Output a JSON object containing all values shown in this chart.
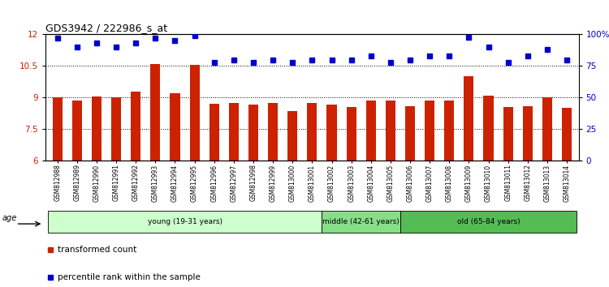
{
  "title": "GDS3942 / 222986_s_at",
  "samples": [
    "GSM812988",
    "GSM812989",
    "GSM812990",
    "GSM812991",
    "GSM812992",
    "GSM812993",
    "GSM812994",
    "GSM812995",
    "GSM812996",
    "GSM812997",
    "GSM812998",
    "GSM812999",
    "GSM813000",
    "GSM813001",
    "GSM813002",
    "GSM813003",
    "GSM813004",
    "GSM813005",
    "GSM813006",
    "GSM813007",
    "GSM813008",
    "GSM813009",
    "GSM813010",
    "GSM813011",
    "GSM813012",
    "GSM813013",
    "GSM813014"
  ],
  "bar_values": [
    9.0,
    8.85,
    9.05,
    9.0,
    9.3,
    10.6,
    9.2,
    10.55,
    8.7,
    8.75,
    8.65,
    8.75,
    8.35,
    8.75,
    8.65,
    8.55,
    8.85,
    8.85,
    8.6,
    8.85,
    8.85,
    10.0,
    9.1,
    8.55,
    8.6,
    9.0,
    8.5
  ],
  "dot_values": [
    97,
    90,
    93,
    90,
    93,
    97,
    95,
    99,
    78,
    80,
    78,
    80,
    78,
    80,
    80,
    80,
    83,
    78,
    80,
    83,
    83,
    98,
    90,
    78,
    83,
    88,
    80
  ],
  "bar_color": "#cc2200",
  "dot_color": "#0000cc",
  "ylim_left": [
    6,
    12
  ],
  "ylim_right": [
    0,
    100
  ],
  "yticks_left": [
    6,
    7.5,
    9,
    10.5,
    12
  ],
  "ytick_labels_left": [
    "6",
    "7.5",
    "9",
    "10.5",
    "12"
  ],
  "yticks_right": [
    0,
    25,
    50,
    75,
    100
  ],
  "ytick_labels_right": [
    "0",
    "25",
    "50",
    "75",
    "100%"
  ],
  "hlines": [
    7.5,
    9.0,
    10.5
  ],
  "groups": [
    {
      "label": "young (19-31 years)",
      "start": 0,
      "end": 14,
      "color": "#ccffcc"
    },
    {
      "label": "middle (42-61 years)",
      "start": 14,
      "end": 18,
      "color": "#88dd88"
    },
    {
      "label": "old (65-84 years)",
      "start": 18,
      "end": 27,
      "color": "#55bb55"
    }
  ],
  "legend_items": [
    {
      "label": "transformed count",
      "color": "#cc2200"
    },
    {
      "label": "percentile rank within the sample",
      "color": "#0000cc"
    }
  ],
  "age_label": "age",
  "figsize": [
    7.5,
    3.54
  ],
  "dpi": 100
}
